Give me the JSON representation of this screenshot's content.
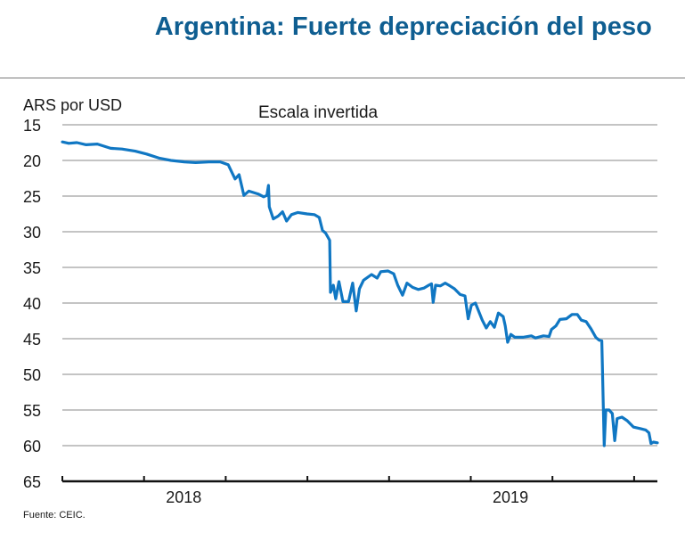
{
  "header": {
    "title": "Argentina: Fuerte depreciación del peso"
  },
  "chart_data": {
    "type": "line",
    "title": "Argentina: Fuerte depreciación del peso",
    "subtitle": "Escala invertida",
    "ylabel": "ARS por USD",
    "xlabel": "",
    "y_inverted": true,
    "ylim": [
      15,
      65
    ],
    "yticks": [
      15,
      20,
      25,
      30,
      35,
      40,
      45,
      50,
      55,
      60,
      65
    ],
    "x_range": [
      "2017-10",
      "2019-08"
    ],
    "x_ticks": [
      "2017-10",
      "2018-01",
      "2018-04",
      "2018-07",
      "2018-10",
      "2019-01",
      "2019-04",
      "2019-07"
    ],
    "x_tick_labels": [
      {
        "label": "2018",
        "at": "2018-02"
      },
      {
        "label": "2019",
        "at": "2019-02"
      }
    ],
    "grid": true,
    "line_color": "#1077C3",
    "series": [
      {
        "name": "ARS por USD",
        "points": [
          [
            "2017-10-02",
            17.4
          ],
          [
            "2017-10-10",
            17.6
          ],
          [
            "2017-10-20",
            17.5
          ],
          [
            "2017-11-01",
            17.8
          ],
          [
            "2017-11-15",
            17.7
          ],
          [
            "2017-12-01",
            18.3
          ],
          [
            "2017-12-15",
            18.4
          ],
          [
            "2018-01-01",
            18.7
          ],
          [
            "2018-01-15",
            19.1
          ],
          [
            "2018-02-01",
            19.7
          ],
          [
            "2018-02-15",
            20.0
          ],
          [
            "2018-03-01",
            20.2
          ],
          [
            "2018-03-15",
            20.3
          ],
          [
            "2018-04-01",
            20.2
          ],
          [
            "2018-04-15",
            20.2
          ],
          [
            "2018-04-25",
            20.6
          ],
          [
            "2018-05-03",
            22.6
          ],
          [
            "2018-05-08",
            22.0
          ],
          [
            "2018-05-14",
            24.9
          ],
          [
            "2018-05-20",
            24.3
          ],
          [
            "2018-06-01",
            24.7
          ],
          [
            "2018-06-08",
            25.1
          ],
          [
            "2018-06-12",
            24.9
          ],
          [
            "2018-06-14",
            23.5
          ],
          [
            "2018-06-15",
            26.5
          ],
          [
            "2018-06-20",
            28.2
          ],
          [
            "2018-06-26",
            27.8
          ],
          [
            "2018-07-01",
            27.2
          ],
          [
            "2018-07-06",
            28.5
          ],
          [
            "2018-07-12",
            27.6
          ],
          [
            "2018-07-20",
            27.3
          ],
          [
            "2018-08-01",
            27.5
          ],
          [
            "2018-08-10",
            27.6
          ],
          [
            "2018-08-16",
            28.0
          ],
          [
            "2018-08-20",
            29.8
          ],
          [
            "2018-08-24",
            30.2
          ],
          [
            "2018-08-29",
            31.2
          ],
          [
            "2018-08-30",
            38.5
          ],
          [
            "2018-09-03",
            37.5
          ],
          [
            "2018-09-06",
            39.4
          ],
          [
            "2018-09-10",
            37.0
          ],
          [
            "2018-09-15",
            39.8
          ],
          [
            "2018-09-22",
            39.8
          ],
          [
            "2018-09-27",
            37.2
          ],
          [
            "2018-10-01",
            41.1
          ],
          [
            "2018-10-05",
            38.0
          ],
          [
            "2018-10-10",
            36.8
          ],
          [
            "2018-10-20",
            36.0
          ],
          [
            "2018-10-27",
            36.5
          ],
          [
            "2018-11-01",
            35.6
          ],
          [
            "2018-11-10",
            35.5
          ],
          [
            "2018-11-17",
            35.9
          ],
          [
            "2018-11-22",
            37.5
          ],
          [
            "2018-11-28",
            38.9
          ],
          [
            "2018-12-03",
            37.2
          ],
          [
            "2018-12-10",
            37.8
          ],
          [
            "2018-12-17",
            38.1
          ],
          [
            "2018-12-24",
            37.9
          ],
          [
            "2018-12-30",
            37.5
          ],
          [
            "2019-01-03",
            37.3
          ],
          [
            "2019-01-05",
            39.9
          ],
          [
            "2019-01-08",
            37.5
          ],
          [
            "2019-01-14",
            37.6
          ],
          [
            "2019-01-20",
            37.2
          ],
          [
            "2019-01-26",
            37.6
          ],
          [
            "2019-02-01",
            38.0
          ],
          [
            "2019-02-08",
            38.8
          ],
          [
            "2019-02-14",
            39.0
          ],
          [
            "2019-02-18",
            42.2
          ],
          [
            "2019-02-22",
            40.3
          ],
          [
            "2019-02-27",
            40.0
          ],
          [
            "2019-03-05",
            42.4
          ],
          [
            "2019-03-10",
            43.5
          ],
          [
            "2019-03-15",
            42.6
          ],
          [
            "2019-03-20",
            43.4
          ],
          [
            "2019-03-25",
            41.4
          ],
          [
            "2019-03-31",
            41.9
          ],
          [
            "2019-04-03",
            43.2
          ],
          [
            "2019-04-06",
            45.5
          ],
          [
            "2019-04-10",
            44.4
          ],
          [
            "2019-04-15",
            44.8
          ],
          [
            "2019-04-25",
            44.8
          ],
          [
            "2019-05-05",
            44.6
          ],
          [
            "2019-05-10",
            44.9
          ],
          [
            "2019-05-20",
            44.6
          ],
          [
            "2019-05-27",
            44.7
          ],
          [
            "2019-05-30",
            43.7
          ],
          [
            "2019-06-05",
            43.2
          ],
          [
            "2019-06-10",
            42.3
          ],
          [
            "2019-06-18",
            42.2
          ],
          [
            "2019-06-25",
            41.6
          ],
          [
            "2019-07-01",
            41.6
          ],
          [
            "2019-07-06",
            42.4
          ],
          [
            "2019-07-12",
            42.6
          ],
          [
            "2019-07-18",
            43.6
          ],
          [
            "2019-07-24",
            44.8
          ],
          [
            "2019-07-28",
            45.2
          ],
          [
            "2019-08-01",
            45.3
          ],
          [
            "2019-08-04",
            60.0
          ],
          [
            "2019-08-06",
            55.0
          ],
          [
            "2019-08-10",
            55.0
          ],
          [
            "2019-08-14",
            55.5
          ],
          [
            "2019-08-17",
            59.3
          ],
          [
            "2019-08-20",
            56.2
          ],
          [
            "2019-08-26",
            56.0
          ],
          [
            "2019-09-02",
            56.5
          ],
          [
            "2019-09-10",
            57.4
          ],
          [
            "2019-09-18",
            57.6
          ],
          [
            "2019-09-25",
            57.8
          ],
          [
            "2019-09-29",
            58.2
          ],
          [
            "2019-10-01",
            59.7
          ],
          [
            "2019-10-04",
            59.5
          ],
          [
            "2019-10-09",
            59.6
          ]
        ]
      }
    ],
    "source": "Fuente: CEIC."
  }
}
